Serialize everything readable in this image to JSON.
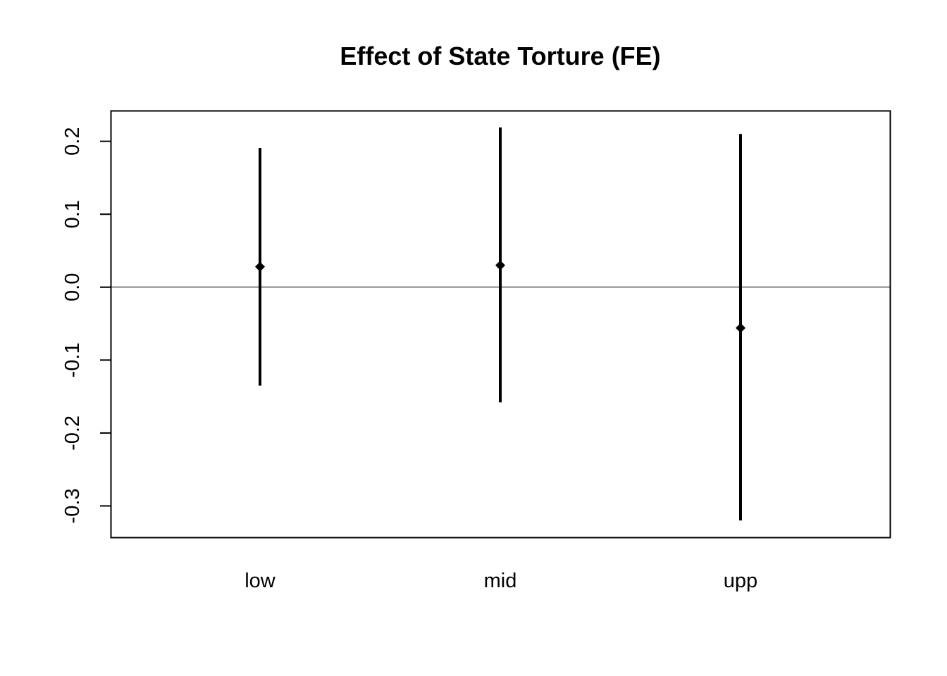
{
  "chart_data": {
    "type": "errorbar",
    "title": "Effect of State Torture (FE)",
    "xlabel": "",
    "ylabel": "",
    "categories": [
      "low",
      "mid",
      "upp"
    ],
    "series": [
      {
        "estimate": [
          0.028,
          0.03,
          -0.056
        ],
        "lower": [
          -0.135,
          -0.158,
          -0.32
        ],
        "upper": [
          0.191,
          0.219,
          0.21
        ]
      }
    ],
    "yticks": [
      "-0.3",
      "-0.2",
      "-0.1",
      "0.0",
      "0.1",
      "0.2"
    ],
    "ylim": [
      -0.343,
      0.2412
    ],
    "reference_line": 0.0,
    "grid": false,
    "legend": "none",
    "colors": {
      "marks": "#000000",
      "background": "#ffffff"
    }
  }
}
